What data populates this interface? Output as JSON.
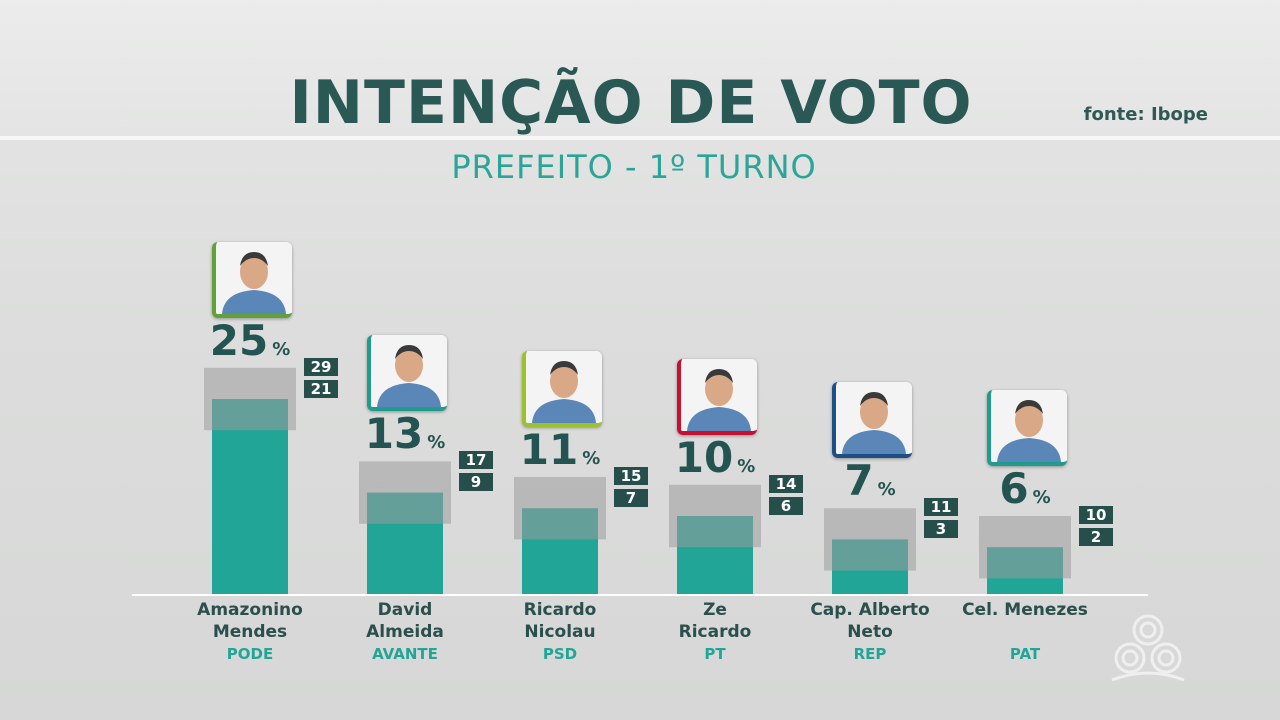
{
  "header": {
    "title": "INTENÇÃO DE VOTO",
    "subtitle": "PREFEITO - 1º TURNO",
    "source": "fonte: Ibope"
  },
  "colors": {
    "bar": "#21a596",
    "margin_box": "#9c9d9c",
    "range_box": "#264f4c",
    "title": "#2a5855"
  },
  "chart_data": {
    "type": "bar",
    "unit": "%",
    "categories": [
      "Amazonino Mendes",
      "David Almeida",
      "Ricardo Nicolau",
      "Ze Ricardo",
      "Cap. Alberto Neto",
      "Cel. Menezes"
    ],
    "values": [
      25,
      13,
      11,
      10,
      7,
      6
    ],
    "ylim": [
      0,
      30
    ],
    "grid": false,
    "candidates": [
      {
        "name_lines": [
          "Amazonino",
          "Mendes"
        ],
        "party": "PODE",
        "value": 25,
        "high": 29,
        "low": 21,
        "accent": "#5fa23a"
      },
      {
        "name_lines": [
          "David",
          "Almeida"
        ],
        "party": "AVANTE",
        "value": 13,
        "high": 17,
        "low": 9,
        "accent": "#1f9c8e"
      },
      {
        "name_lines": [
          "Ricardo",
          "Nicolau"
        ],
        "party": "PSD",
        "value": 11,
        "high": 15,
        "low": 7,
        "accent": "#9bc22a"
      },
      {
        "name_lines": [
          "Ze",
          "Ricardo"
        ],
        "party": "PT",
        "value": 10,
        "high": 14,
        "low": 6,
        "accent": "#c8102e"
      },
      {
        "name_lines": [
          "Cap. Alberto",
          "Neto"
        ],
        "party": "REP",
        "value": 7,
        "high": 11,
        "low": 3,
        "accent": "#1d4f86"
      },
      {
        "name_lines": [
          "Cel. Menezes"
        ],
        "party": "PAT",
        "value": 6,
        "high": 10,
        "low": 2,
        "accent": "#1f9c8e"
      }
    ]
  },
  "icons": {
    "logo": "broadcaster-logo-icon",
    "photo": "candidate-photo-icon"
  }
}
